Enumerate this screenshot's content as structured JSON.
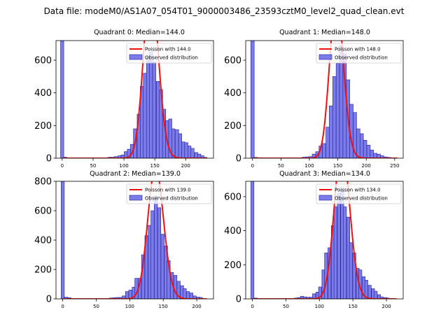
{
  "title": "Data file: modeM0/AS1A07_054T01_9000003486_23593cztM0_level2_quad_clean.evt",
  "colors": {
    "bar_fill": "#7b7bea",
    "bar_edge": "#1f1f9a",
    "poisson_line": "#ee1111"
  },
  "chart_data": [
    {
      "type": "bar",
      "title": "Quadrant 0: Median=144.0",
      "median": 144.0,
      "xlim": [
        -10,
        245
      ],
      "ylim": [
        0,
        720
      ],
      "xticks": [
        0,
        50,
        100,
        150,
        200
      ],
      "yticks": [
        0,
        200,
        400,
        600
      ],
      "legend": {
        "line": "Poisson with 144.0",
        "bar": "Observed distribution",
        "placement": "top-right"
      },
      "bin_width": 5.2,
      "bins": [
        {
          "x": 0,
          "y": 720
        },
        {
          "x": 5,
          "y": 6
        },
        {
          "x": 77,
          "y": 6
        },
        {
          "x": 82,
          "y": 6
        },
        {
          "x": 87,
          "y": 10
        },
        {
          "x": 93,
          "y": 15
        },
        {
          "x": 98,
          "y": 20
        },
        {
          "x": 103,
          "y": 40
        },
        {
          "x": 108,
          "y": 55
        },
        {
          "x": 113,
          "y": 85
        },
        {
          "x": 118,
          "y": 180
        },
        {
          "x": 124,
          "y": 270
        },
        {
          "x": 129,
          "y": 440
        },
        {
          "x": 134,
          "y": 520
        },
        {
          "x": 139,
          "y": 620
        },
        {
          "x": 144,
          "y": 650
        },
        {
          "x": 149,
          "y": 590
        },
        {
          "x": 155,
          "y": 470
        },
        {
          "x": 160,
          "y": 420
        },
        {
          "x": 165,
          "y": 300
        },
        {
          "x": 170,
          "y": 230
        },
        {
          "x": 175,
          "y": 240
        },
        {
          "x": 180,
          "y": 180
        },
        {
          "x": 186,
          "y": 175
        },
        {
          "x": 191,
          "y": 150
        },
        {
          "x": 196,
          "y": 100
        },
        {
          "x": 201,
          "y": 95
        },
        {
          "x": 206,
          "y": 75
        },
        {
          "x": 211,
          "y": 60
        },
        {
          "x": 217,
          "y": 35
        },
        {
          "x": 222,
          "y": 25
        },
        {
          "x": 227,
          "y": 15
        },
        {
          "x": 232,
          "y": 5
        }
      ]
    },
    {
      "type": "bar",
      "title": "Quadrant 1: Median=148.0",
      "median": 148.0,
      "xlim": [
        -12,
        265
      ],
      "ylim": [
        0,
        720
      ],
      "xticks": [
        0,
        50,
        100,
        150,
        200,
        250
      ],
      "yticks": [
        0,
        200,
        400,
        600
      ],
      "legend": {
        "line": "Poisson with 148.0",
        "bar": "Observed distribution",
        "placement": "top-right"
      },
      "bin_width": 6.0,
      "bins": [
        {
          "x": 0,
          "y": 720
        },
        {
          "x": 6,
          "y": 5
        },
        {
          "x": 90,
          "y": 6
        },
        {
          "x": 96,
          "y": 8
        },
        {
          "x": 102,
          "y": 10
        },
        {
          "x": 108,
          "y": 25
        },
        {
          "x": 114,
          "y": 40
        },
        {
          "x": 120,
          "y": 75
        },
        {
          "x": 126,
          "y": 90
        },
        {
          "x": 132,
          "y": 190
        },
        {
          "x": 138,
          "y": 320
        },
        {
          "x": 144,
          "y": 500
        },
        {
          "x": 150,
          "y": 580
        },
        {
          "x": 156,
          "y": 690
        },
        {
          "x": 162,
          "y": 640
        },
        {
          "x": 168,
          "y": 480
        },
        {
          "x": 174,
          "y": 330
        },
        {
          "x": 180,
          "y": 280
        },
        {
          "x": 186,
          "y": 180
        },
        {
          "x": 192,
          "y": 150
        },
        {
          "x": 198,
          "y": 110
        },
        {
          "x": 204,
          "y": 80
        },
        {
          "x": 210,
          "y": 50
        },
        {
          "x": 216,
          "y": 30
        },
        {
          "x": 222,
          "y": 25
        },
        {
          "x": 228,
          "y": 15
        },
        {
          "x": 234,
          "y": 8
        },
        {
          "x": 240,
          "y": 5
        }
      ]
    },
    {
      "type": "bar",
      "title": "Quadrant 2: Median=139.0",
      "median": 139.0,
      "xlim": [
        -10,
        225
      ],
      "ylim": [
        0,
        800
      ],
      "xticks": [
        0,
        50,
        100,
        150,
        200
      ],
      "yticks": [
        0,
        200,
        400,
        600,
        800
      ],
      "legend": {
        "line": "Poisson with 139.0",
        "bar": "Observed distribution",
        "placement": "top-right"
      },
      "bin_width": 4.8,
      "bins": [
        {
          "x": 0,
          "y": 800
        },
        {
          "x": 5,
          "y": 12
        },
        {
          "x": 10,
          "y": 8
        },
        {
          "x": 72,
          "y": 6
        },
        {
          "x": 77,
          "y": 8
        },
        {
          "x": 82,
          "y": 10
        },
        {
          "x": 87,
          "y": 10
        },
        {
          "x": 91,
          "y": 20
        },
        {
          "x": 96,
          "y": 50
        },
        {
          "x": 101,
          "y": 60
        },
        {
          "x": 106,
          "y": 80
        },
        {
          "x": 110,
          "y": 140
        },
        {
          "x": 115,
          "y": 140
        },
        {
          "x": 120,
          "y": 300
        },
        {
          "x": 125,
          "y": 430
        },
        {
          "x": 130,
          "y": 500
        },
        {
          "x": 134,
          "y": 600
        },
        {
          "x": 139,
          "y": 700
        },
        {
          "x": 144,
          "y": 620
        },
        {
          "x": 149,
          "y": 440
        },
        {
          "x": 154,
          "y": 360
        },
        {
          "x": 158,
          "y": 260
        },
        {
          "x": 163,
          "y": 180
        },
        {
          "x": 168,
          "y": 160
        },
        {
          "x": 173,
          "y": 120
        },
        {
          "x": 178,
          "y": 90
        },
        {
          "x": 182,
          "y": 70
        },
        {
          "x": 187,
          "y": 50
        },
        {
          "x": 192,
          "y": 40
        },
        {
          "x": 197,
          "y": 20
        },
        {
          "x": 202,
          "y": 12
        },
        {
          "x": 206,
          "y": 10
        }
      ]
    },
    {
      "type": "bar",
      "title": "Quadrant 3: Median=134.0",
      "median": 134.0,
      "xlim": [
        -10,
        225
      ],
      "ylim": [
        0,
        690
      ],
      "xticks": [
        0,
        50,
        100,
        150,
        200
      ],
      "yticks": [
        0,
        200,
        400,
        600
      ],
      "legend": {
        "line": "Poisson with 134.0",
        "bar": "Observed distribution",
        "placement": "top-right"
      },
      "bin_width": 4.6,
      "bins": [
        {
          "x": 0,
          "y": 690
        },
        {
          "x": 5,
          "y": 5
        },
        {
          "x": 65,
          "y": 5
        },
        {
          "x": 69,
          "y": 8
        },
        {
          "x": 74,
          "y": 15
        },
        {
          "x": 78,
          "y": 12
        },
        {
          "x": 83,
          "y": 10
        },
        {
          "x": 88,
          "y": 10
        },
        {
          "x": 92,
          "y": 30
        },
        {
          "x": 97,
          "y": 40
        },
        {
          "x": 101,
          "y": 70
        },
        {
          "x": 106,
          "y": 170
        },
        {
          "x": 110,
          "y": 270
        },
        {
          "x": 115,
          "y": 300
        },
        {
          "x": 120,
          "y": 430
        },
        {
          "x": 124,
          "y": 540
        },
        {
          "x": 129,
          "y": 620
        },
        {
          "x": 134,
          "y": 640
        },
        {
          "x": 138,
          "y": 540
        },
        {
          "x": 143,
          "y": 480
        },
        {
          "x": 147,
          "y": 330
        },
        {
          "x": 152,
          "y": 270
        },
        {
          "x": 157,
          "y": 180
        },
        {
          "x": 161,
          "y": 170
        },
        {
          "x": 166,
          "y": 130
        },
        {
          "x": 170,
          "y": 110
        },
        {
          "x": 175,
          "y": 80
        },
        {
          "x": 180,
          "y": 60
        },
        {
          "x": 184,
          "y": 45
        },
        {
          "x": 189,
          "y": 25
        },
        {
          "x": 193,
          "y": 12
        },
        {
          "x": 198,
          "y": 8
        },
        {
          "x": 202,
          "y": 5
        }
      ]
    }
  ]
}
